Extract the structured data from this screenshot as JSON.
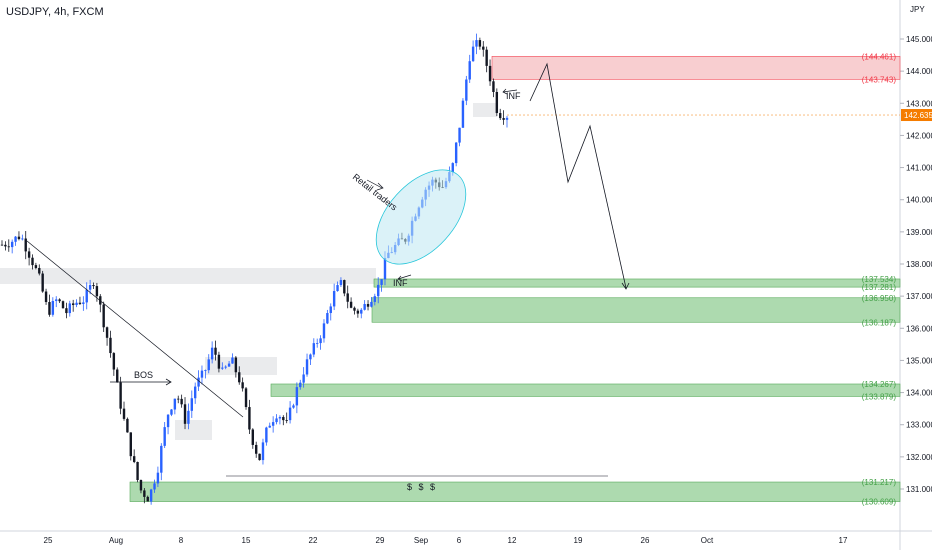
{
  "header": {
    "symbol_title": "USDJPY, 4h, FXCM"
  },
  "chart_data": {
    "type": "candlestick",
    "symbol": "USDJPY",
    "timeframe": "4h",
    "source": "FXCM",
    "currency_label": "JPY",
    "ylim": [
      130.3,
      145.6
    ],
    "y_ticks": [
      "131.000",
      "132.000",
      "133.000",
      "134.000",
      "135.000",
      "136.000",
      "137.000",
      "138.000",
      "139.000",
      "140.000",
      "141.000",
      "142.000",
      "143.000",
      "144.000",
      "145.000"
    ],
    "x_ticks": [
      "25",
      "Aug",
      "8",
      "15",
      "22",
      "29",
      "Sep",
      "6",
      "12",
      "19",
      "26",
      "Oct",
      "17"
    ],
    "current_price": {
      "label": "142.635",
      "color": "#f57c00"
    },
    "price_path": [
      138.6,
      138.7,
      138.9,
      138.3,
      137.6,
      136.5,
      136.9,
      136.5,
      136.8,
      136.9,
      137.5,
      136.3,
      135.0,
      133.5,
      132.2,
      131.0,
      130.7,
      131.7,
      133.3,
      134.0,
      133.1,
      134.2,
      134.6,
      135.4,
      134.6,
      135.0,
      134.3,
      132.8,
      131.9,
      133.0,
      133.4,
      133.0,
      134.0,
      134.8,
      135.4,
      136.0,
      137.0,
      137.4,
      136.6,
      136.5,
      136.9,
      137.3,
      138.3,
      138.6,
      138.8,
      139.6,
      140.3,
      140.6,
      140.4,
      140.9,
      142.6,
      144.6,
      144.9,
      144.0,
      142.7,
      142.635
    ],
    "zones": [
      {
        "name": "supply",
        "top": 144.461,
        "bottom": 143.743,
        "color": "#f8c9cc",
        "stroke": "#f23645",
        "labels": [
          "144.461",
          "143.743"
        ]
      },
      {
        "name": "demand-1",
        "top": 137.534,
        "bottom": 137.281,
        "color": "#a5d6a7",
        "stroke": "#43a047",
        "labels": [
          "137.534",
          "137.281"
        ]
      },
      {
        "name": "demand-2",
        "top": 136.95,
        "bottom": 136.187,
        "color": "#a5d6a7",
        "stroke": "#43a047",
        "labels": [
          "136.950",
          "136.187"
        ]
      },
      {
        "name": "demand-3",
        "top": 134.267,
        "bottom": 133.879,
        "color": "#a5d6a7",
        "stroke": "#43a047",
        "labels": [
          "134.267",
          "133.879"
        ]
      },
      {
        "name": "demand-4",
        "top": 131.217,
        "bottom": 130.609,
        "color": "#a5d6a7",
        "stroke": "#43a047",
        "labels": [
          "131.217",
          "130.609"
        ]
      }
    ],
    "annotations": {
      "bos": "BOS",
      "liquidity": "$ $ $",
      "retail": "Retail traders",
      "inf_top": "INF",
      "inf_bottom": "INF"
    },
    "projection": [
      [
        143.0,
        144.3,
        140.7,
        142.4,
        137.4
      ]
    ]
  }
}
